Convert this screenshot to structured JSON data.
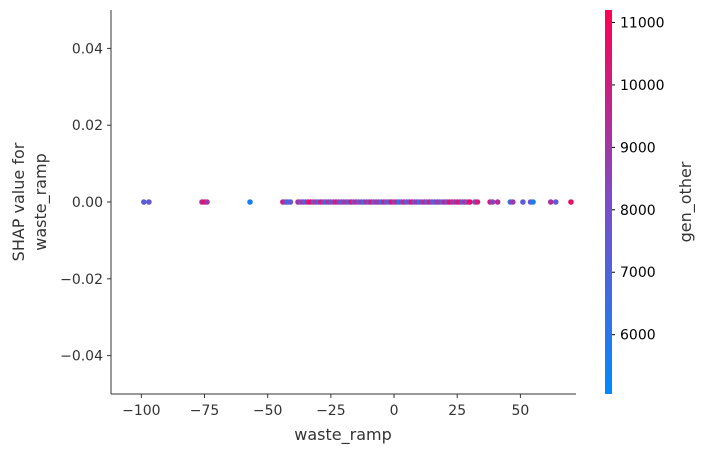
{
  "chart_data": {
    "type": "scatter",
    "title": "",
    "xlabel": "waste_ramp",
    "ylabel_lines": [
      "SHAP value for",
      "waste_ramp"
    ],
    "xlim": [
      -112,
      72
    ],
    "ylim": [
      -0.05,
      0.05
    ],
    "xticks": [
      -100,
      -75,
      -50,
      -25,
      0,
      25,
      50
    ],
    "xtick_labels": [
      "−100",
      "−75",
      "−50",
      "−25",
      "0",
      "25",
      "50"
    ],
    "yticks": [
      0.04,
      0.02,
      0.0,
      -0.02,
      -0.04
    ],
    "ytick_labels": [
      "0.04",
      "0.02",
      "0.00",
      "−0.02",
      "−0.04"
    ],
    "grid": false,
    "colorbar": {
      "label": "gen_other",
      "range": [
        5050,
        11200
      ],
      "ticks": [
        6000,
        7000,
        8000,
        9000,
        10000,
        11000
      ],
      "tick_labels": [
        "6000",
        "7000",
        "8000",
        "9000",
        "10000",
        "11000"
      ],
      "low_color": "#008afb",
      "mid_color": "#7c4dc8",
      "high_color": "#ff0052"
    },
    "points": [
      {
        "x": -99,
        "y": 0.0,
        "c": 7200
      },
      {
        "x": -97,
        "y": 0.0,
        "c": 7500
      },
      {
        "x": -76,
        "y": 0.0,
        "c": 9400
      },
      {
        "x": -75,
        "y": 0.0,
        "c": 10600
      },
      {
        "x": -74,
        "y": 0.0,
        "c": 9000
      },
      {
        "x": -57,
        "y": 0.0,
        "c": 5600
      },
      {
        "x": -44,
        "y": 0.0,
        "c": 9800
      },
      {
        "x": -43,
        "y": 0.0,
        "c": 8600
      },
      {
        "x": -42,
        "y": 0.0,
        "c": 6200
      },
      {
        "x": -41,
        "y": 0.0,
        "c": 7600
      },
      {
        "x": -38,
        "y": 0.0,
        "c": 9500
      },
      {
        "x": -37,
        "y": 0.0,
        "c": 8100
      },
      {
        "x": -36,
        "y": 0.0,
        "c": 8800
      },
      {
        "x": -35,
        "y": 0.0,
        "c": 6600
      },
      {
        "x": -34,
        "y": 0.0,
        "c": 9900
      },
      {
        "x": -33,
        "y": 0.0,
        "c": 10800
      },
      {
        "x": -32,
        "y": 0.0,
        "c": 8300
      },
      {
        "x": -31,
        "y": 0.0,
        "c": 9200
      },
      {
        "x": -30,
        "y": 0.0,
        "c": 7000
      },
      {
        "x": -29,
        "y": 0.0,
        "c": 10300
      },
      {
        "x": -28,
        "y": 0.0,
        "c": 8900
      },
      {
        "x": -27,
        "y": 0.0,
        "c": 6400
      },
      {
        "x": -26,
        "y": 0.0,
        "c": 9600
      },
      {
        "x": -25,
        "y": 0.0,
        "c": 7800
      },
      {
        "x": -24,
        "y": 0.0,
        "c": 8500
      },
      {
        "x": -23,
        "y": 0.0,
        "c": 10100
      },
      {
        "x": -22,
        "y": 0.0,
        "c": 9100
      },
      {
        "x": -21,
        "y": 0.0,
        "c": 7300
      },
      {
        "x": -20,
        "y": 0.0,
        "c": 8700
      },
      {
        "x": -19,
        "y": 0.0,
        "c": 9300
      },
      {
        "x": -18,
        "y": 0.0,
        "c": 6800
      },
      {
        "x": -17,
        "y": 0.0,
        "c": 10500
      },
      {
        "x": -16,
        "y": 0.0,
        "c": 8200
      },
      {
        "x": -15,
        "y": 0.0,
        "c": 9700
      },
      {
        "x": -14,
        "y": 0.0,
        "c": 7500
      },
      {
        "x": -13,
        "y": 0.0,
        "c": 8900
      },
      {
        "x": -12,
        "y": 0.0,
        "c": 6000
      },
      {
        "x": -11,
        "y": 0.0,
        "c": 9400
      },
      {
        "x": -10,
        "y": 0.0,
        "c": 8400
      },
      {
        "x": -9,
        "y": 0.0,
        "c": 10200
      },
      {
        "x": -8,
        "y": 0.0,
        "c": 7700
      },
      {
        "x": -7,
        "y": 0.0,
        "c": 9000
      },
      {
        "x": -6,
        "y": 0.0,
        "c": 8600
      },
      {
        "x": -5,
        "y": 0.0,
        "c": 6500
      },
      {
        "x": -4,
        "y": 0.0,
        "c": 9800
      },
      {
        "x": -3,
        "y": 0.0,
        "c": 8100
      },
      {
        "x": -2,
        "y": 0.0,
        "c": 7400
      },
      {
        "x": -1,
        "y": 0.0,
        "c": 10700
      },
      {
        "x": 0,
        "y": 0.0,
        "c": 8800
      },
      {
        "x": 1,
        "y": 0.0,
        "c": 9500
      },
      {
        "x": 2,
        "y": 0.0,
        "c": 5900
      },
      {
        "x": 3,
        "y": 0.0,
        "c": 8300
      },
      {
        "x": 4,
        "y": 0.0,
        "c": 9900
      },
      {
        "x": 5,
        "y": 0.0,
        "c": 7100
      },
      {
        "x": 6,
        "y": 0.0,
        "c": 8700
      },
      {
        "x": 7,
        "y": 0.0,
        "c": 10400
      },
      {
        "x": 8,
        "y": 0.0,
        "c": 7900
      },
      {
        "x": 9,
        "y": 0.0,
        "c": 9200
      },
      {
        "x": 10,
        "y": 0.0,
        "c": 6300
      },
      {
        "x": 11,
        "y": 0.0,
        "c": 8500
      },
      {
        "x": 12,
        "y": 0.0,
        "c": 9600
      },
      {
        "x": 13,
        "y": 0.0,
        "c": 7600
      },
      {
        "x": 14,
        "y": 0.0,
        "c": 10000
      },
      {
        "x": 15,
        "y": 0.0,
        "c": 8200
      },
      {
        "x": 16,
        "y": 0.0,
        "c": 6900
      },
      {
        "x": 17,
        "y": 0.0,
        "c": 9100
      },
      {
        "x": 18,
        "y": 0.0,
        "c": 8600
      },
      {
        "x": 19,
        "y": 0.0,
        "c": 7200
      },
      {
        "x": 20,
        "y": 0.0,
        "c": 9700
      },
      {
        "x": 21,
        "y": 0.0,
        "c": 8000
      },
      {
        "x": 22,
        "y": 0.0,
        "c": 10600
      },
      {
        "x": 23,
        "y": 0.0,
        "c": 9300
      },
      {
        "x": 24,
        "y": 0.0,
        "c": 8800
      },
      {
        "x": 25,
        "y": 0.0,
        "c": 9800
      },
      {
        "x": 26,
        "y": 0.0,
        "c": 10200
      },
      {
        "x": 27,
        "y": 0.0,
        "c": 7500
      },
      {
        "x": 28,
        "y": 0.0,
        "c": 9000
      },
      {
        "x": 29,
        "y": 0.0,
        "c": 8400
      },
      {
        "x": 30,
        "y": 0.0,
        "c": 10900
      },
      {
        "x": 32,
        "y": 0.0,
        "c": 7900
      },
      {
        "x": 33,
        "y": 0.0,
        "c": 10300
      },
      {
        "x": 38,
        "y": 0.0,
        "c": 10000
      },
      {
        "x": 39,
        "y": 0.0,
        "c": 8600
      },
      {
        "x": 41,
        "y": 0.0,
        "c": 9400
      },
      {
        "x": 46,
        "y": 0.0,
        "c": 6600
      },
      {
        "x": 47,
        "y": 0.0,
        "c": 8900
      },
      {
        "x": 51,
        "y": 0.0,
        "c": 7300
      },
      {
        "x": 54,
        "y": 0.0,
        "c": 7700
      },
      {
        "x": 55,
        "y": 0.0,
        "c": 5700
      },
      {
        "x": 62,
        "y": 0.0,
        "c": 9200
      },
      {
        "x": 64,
        "y": 0.0,
        "c": 7400
      },
      {
        "x": 70,
        "y": 0.0,
        "c": 10700
      }
    ]
  }
}
